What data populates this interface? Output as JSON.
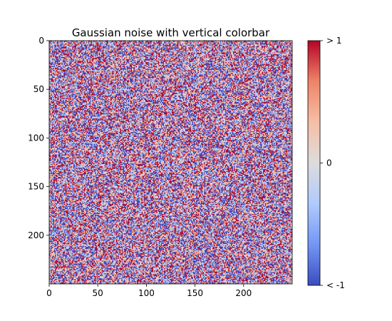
{
  "chart_data": {
    "type": "heatmap",
    "title": "Gaussian noise with vertical colorbar",
    "xlabel": "",
    "ylabel": "",
    "rows": 250,
    "cols": 250,
    "distribution": "gaussian",
    "mean": 0,
    "std": 1,
    "clim": [
      -1,
      1
    ],
    "xlim": [
      0,
      250
    ],
    "ylim": [
      250,
      0
    ],
    "xticks": [
      0,
      50,
      100,
      150,
      200
    ],
    "yticks": [
      0,
      50,
      100,
      150,
      200
    ],
    "x_tick_labels": [
      "0",
      "50",
      "100",
      "150",
      "200"
    ],
    "y_tick_labels": [
      "0",
      "50",
      "100",
      "150",
      "200"
    ],
    "colormap": "coolwarm",
    "colormap_stops": [
      "#3b4cc0",
      "#7396f5",
      "#b0cbfc",
      "#dddcdc",
      "#f6bfa6",
      "#ee8468",
      "#b40426"
    ],
    "colorbar": {
      "orientation": "vertical",
      "position": "right",
      "ticks": [
        -1,
        0,
        1
      ],
      "tick_labels": [
        "< -1",
        "0",
        "> 1"
      ]
    },
    "grid": false
  }
}
